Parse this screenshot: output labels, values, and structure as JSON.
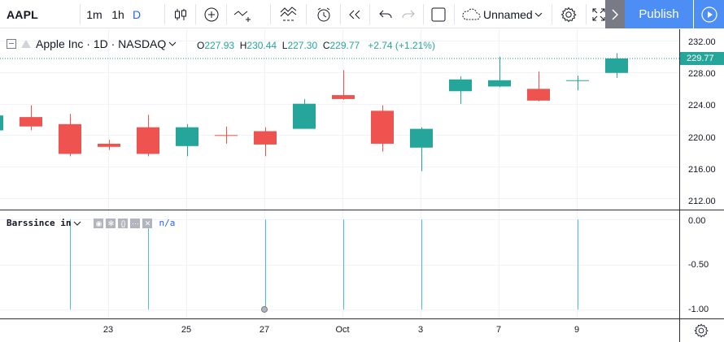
{
  "toolbar": {
    "symbol": "AAPL",
    "intervals": [
      "1m",
      "1h",
      "D"
    ],
    "layout_name": "Unnamed",
    "publish_label": "Publish"
  },
  "legend": {
    "title": "Apple Inc · 1D · NASDAQ",
    "open_label": "O",
    "open": "227.93",
    "high_label": "H",
    "high": "230.44",
    "low_label": "L",
    "low": "227.30",
    "close_label": "C",
    "close": "229.77",
    "change": "+2.74 (+1.21%)"
  },
  "indicator": {
    "name": "Barssince in",
    "value": "n/a"
  },
  "price_axis": [
    "232.00",
    "228.00",
    "224.00",
    "220.00",
    "216.00",
    "212.00"
  ],
  "last_price": "229.77",
  "indicator_axis": [
    "0.00",
    "-0.50",
    "-1.00"
  ],
  "time_axis": [
    "23",
    "25",
    "27",
    "Oct",
    "3",
    "7",
    "9"
  ],
  "colors": {
    "up": "#26a69a",
    "down": "#ef5350",
    "grid": "#f0f3fa",
    "indicator_line": "#4dc0c7",
    "accent": "#2962ff"
  },
  "chart_data": {
    "type": "candlestick",
    "ylim": [
      210.5,
      233.5
    ],
    "indicator_ylim": [
      -1.1,
      0.1
    ],
    "candles": [
      {
        "o": 220.6,
        "h": 223.0,
        "l": 220.3,
        "c": 222.5
      },
      {
        "o": 222.3,
        "h": 223.8,
        "l": 220.6,
        "c": 221.1
      },
      {
        "o": 221.4,
        "h": 222.7,
        "l": 217.3,
        "c": 217.6
      },
      {
        "o": 218.9,
        "h": 219.4,
        "l": 218.1,
        "c": 218.5
      },
      {
        "o": 221.0,
        "h": 222.6,
        "l": 217.3,
        "c": 217.6
      },
      {
        "o": 218.6,
        "h": 221.4,
        "l": 217.3,
        "c": 221.0
      },
      {
        "o": 220.0,
        "h": 221.1,
        "l": 218.9,
        "c": 219.9
      },
      {
        "o": 220.5,
        "h": 221.0,
        "l": 217.3,
        "c": 218.8
      },
      {
        "o": 220.8,
        "h": 224.6,
        "l": 220.8,
        "c": 224.0
      },
      {
        "o": 225.1,
        "h": 228.3,
        "l": 224.5,
        "c": 224.6
      },
      {
        "o": 223.1,
        "h": 223.8,
        "l": 217.9,
        "c": 218.9
      },
      {
        "o": 218.4,
        "h": 221.0,
        "l": 215.4,
        "c": 220.8
      },
      {
        "o": 225.6,
        "h": 227.5,
        "l": 224.0,
        "c": 227.1
      },
      {
        "o": 226.2,
        "h": 230.0,
        "l": 226.1,
        "c": 227.0
      },
      {
        "o": 225.9,
        "h": 228.1,
        "l": 224.3,
        "c": 224.4
      },
      {
        "o": 227.0,
        "h": 227.6,
        "l": 225.7,
        "c": 227.0
      },
      {
        "o": 227.93,
        "h": 230.44,
        "l": 227.3,
        "c": 229.77
      }
    ],
    "indicator_values": [
      0,
      0,
      -1,
      0,
      -1,
      0,
      0,
      -1,
      0,
      -1,
      0,
      -1,
      0,
      0,
      0,
      -1,
      0
    ]
  }
}
